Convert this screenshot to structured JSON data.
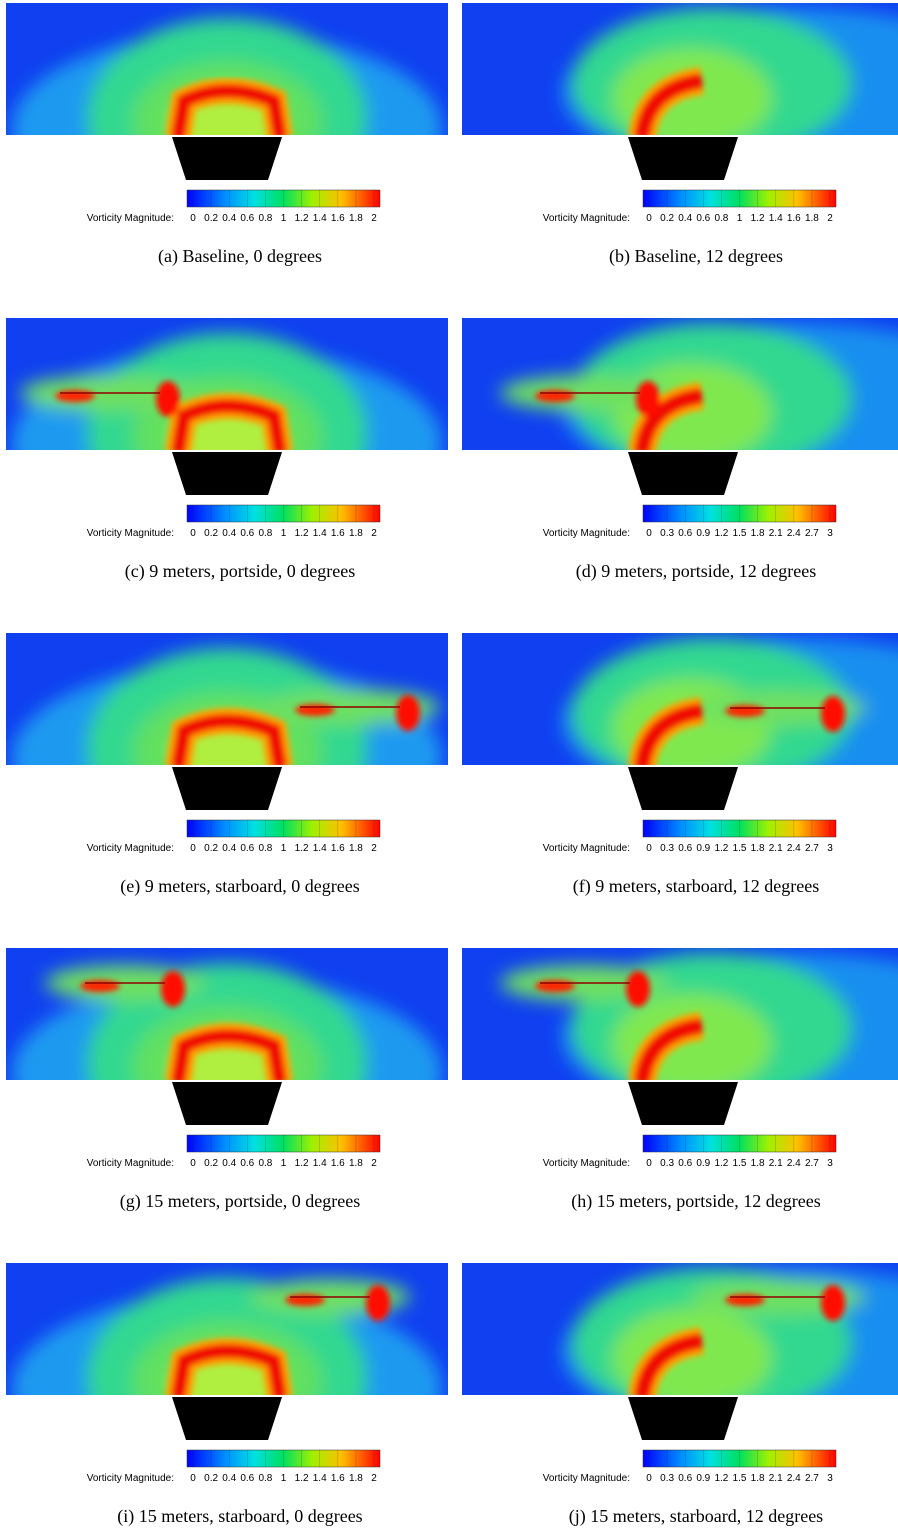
{
  "panels": [
    {
      "caption": "(a)  Baseline, 0 degrees",
      "colorbar": {
        "label": "Vorticity Magnitude:",
        "ticks": [
          0,
          0.2,
          0.4,
          0.6,
          0.8,
          1,
          1.2,
          1.4,
          1.6,
          1.8,
          2
        ]
      }
    },
    {
      "caption": "(b)  Baseline, 12 degrees",
      "colorbar": {
        "label": "Vorticity Magnitude:",
        "ticks": [
          0,
          0.2,
          0.4,
          0.6,
          0.8,
          1,
          1.2,
          1.4,
          1.6,
          1.8,
          2
        ]
      }
    },
    {
      "caption": "(c)  9 meters, portside, 0 degrees",
      "colorbar": {
        "label": "Vorticity Magnitude:",
        "ticks": [
          0,
          0.2,
          0.4,
          0.6,
          0.8,
          1,
          1.2,
          1.4,
          1.6,
          1.8,
          2
        ]
      }
    },
    {
      "caption": "(d)  9 meters, portside, 12 degrees",
      "colorbar": {
        "label": "Vorticity Magnitude:",
        "ticks": [
          0,
          0.3,
          0.6,
          0.9,
          1.2,
          1.5,
          1.8,
          2.1,
          2.4,
          2.7,
          3
        ]
      }
    },
    {
      "caption": "(e)  9 meters, starboard, 0 degrees",
      "colorbar": {
        "label": "Vorticity Magnitude:",
        "ticks": [
          0,
          0.2,
          0.4,
          0.6,
          0.8,
          1,
          1.2,
          1.4,
          1.6,
          1.8,
          2
        ]
      }
    },
    {
      "caption": "(f)  9 meters, starboard, 12 degrees",
      "colorbar": {
        "label": "Vorticity Magnitude:",
        "ticks": [
          0,
          0.3,
          0.6,
          0.9,
          1.2,
          1.5,
          1.8,
          2.1,
          2.4,
          2.7,
          3
        ]
      }
    },
    {
      "caption": "(g)  15 meters, portside, 0 degrees",
      "colorbar": {
        "label": "Vorticity Magnitude:",
        "ticks": [
          0,
          0.2,
          0.4,
          0.6,
          0.8,
          1,
          1.2,
          1.4,
          1.6,
          1.8,
          2
        ]
      }
    },
    {
      "caption": "(h)  15 meters, portside, 12 degrees",
      "colorbar": {
        "label": "Vorticity Magnitude:",
        "ticks": [
          0,
          0.3,
          0.6,
          0.9,
          1.2,
          1.5,
          1.8,
          2.1,
          2.4,
          2.7,
          3
        ]
      }
    },
    {
      "caption": "(i)  15 meters, starboard, 0 degrees",
      "colorbar": {
        "label": "Vorticity Magnitude:",
        "ticks": [
          0,
          0.2,
          0.4,
          0.6,
          0.8,
          1,
          1.2,
          1.4,
          1.6,
          1.8,
          2
        ]
      }
    },
    {
      "caption": "(j)  15 meters, starboard, 12 degrees",
      "colorbar": {
        "label": "Vorticity Magnitude:",
        "ticks": [
          0,
          0.3,
          0.6,
          0.9,
          1.2,
          1.5,
          1.8,
          2.1,
          2.4,
          2.7,
          3
        ]
      }
    }
  ]
}
